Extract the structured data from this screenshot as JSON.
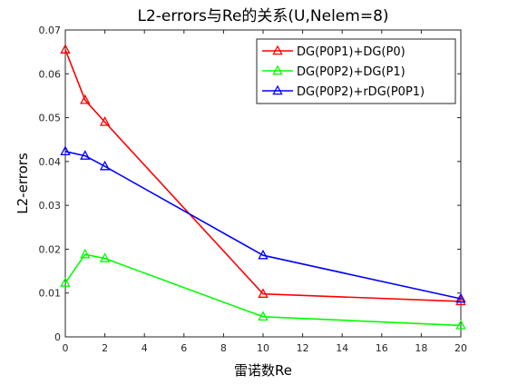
{
  "chart_data": {
    "type": "line",
    "title": "L2-errors与Re的关系(U,Nelem=8)",
    "xlabel": "雷诺数Re",
    "ylabel": "L2-errors",
    "xlim": [
      0,
      20
    ],
    "ylim": [
      0,
      0.07
    ],
    "xticks": [
      0,
      2,
      4,
      6,
      8,
      10,
      12,
      14,
      16,
      18,
      20
    ],
    "yticks": [
      0,
      0.01,
      0.02,
      0.03,
      0.04,
      0.05,
      0.06,
      0.07
    ],
    "xtick_labels": [
      "0",
      "2",
      "4",
      "6",
      "8",
      "10",
      "12",
      "14",
      "16",
      "18",
      "20"
    ],
    "ytick_labels": [
      "0",
      "0.01",
      "0.02",
      "0.03",
      "0.04",
      "0.05",
      "0.06",
      "0.07"
    ],
    "grid": false,
    "legend_position": "top-right",
    "marker": "triangle",
    "x": [
      0,
      1,
      2,
      10,
      20
    ],
    "series": [
      {
        "name": "DG(P0P1)+DG(P0)",
        "color": "#ff0000",
        "values": [
          0.0655,
          0.054,
          0.049,
          0.0098,
          0.0081
        ]
      },
      {
        "name": "DG(P0P2)+DG(P1)",
        "color": "#00ff00",
        "values": [
          0.0123,
          0.0188,
          0.0179,
          0.0046,
          0.0026
        ]
      },
      {
        "name": "DG(P0P2)+rDG(P0P1)",
        "color": "#0000ff",
        "values": [
          0.0423,
          0.0413,
          0.0389,
          0.0186,
          0.0087
        ]
      }
    ]
  }
}
